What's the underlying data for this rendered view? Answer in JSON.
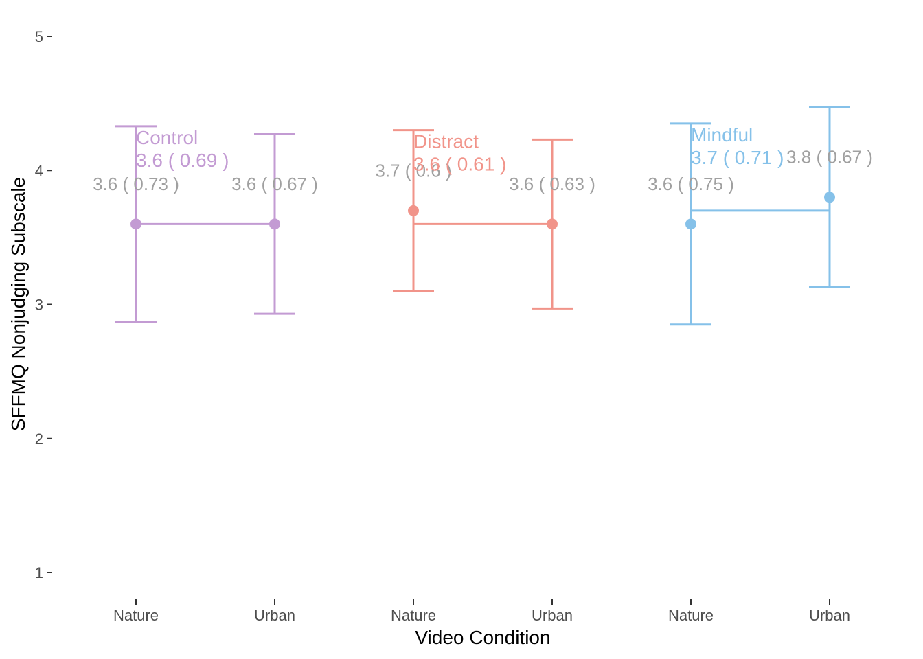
{
  "chart_data": {
    "type": "errorbar",
    "title": "",
    "xlabel": "Video Condition",
    "ylabel": "SFFMQ Nonjudging Subscale",
    "ylim": [
      1,
      5
    ],
    "yticks": [
      1,
      2,
      3,
      4,
      5
    ],
    "grid": false,
    "legend": "none",
    "groups": [
      {
        "name": "Control",
        "color": "#c39bd3",
        "overall_label": "3.6  ( 0.69 )",
        "overall_mean": 3.6,
        "points": [
          {
            "x": "Nature",
            "mean": 3.6,
            "low": 2.87,
            "high": 4.33,
            "label": "3.6  ( 0.73 )"
          },
          {
            "x": "Urban",
            "mean": 3.6,
            "low": 2.93,
            "high": 4.27,
            "label": "3.6  ( 0.67 )"
          }
        ]
      },
      {
        "name": "Distract",
        "color": "#f1948a",
        "overall_label": "3.6  ( 0.61 )",
        "overall_mean": 3.6,
        "points": [
          {
            "x": "Nature",
            "mean": 3.7,
            "low": 3.1,
            "high": 4.3,
            "label": "3.7  ( 0.6 )"
          },
          {
            "x": "Urban",
            "mean": 3.6,
            "low": 2.97,
            "high": 4.23,
            "label": "3.6  ( 0.63 )"
          }
        ]
      },
      {
        "name": "Mindful",
        "color": "#85c1e9",
        "overall_label": "3.7  ( 0.71 )",
        "overall_mean": 3.7,
        "points": [
          {
            "x": "Nature",
            "mean": 3.6,
            "low": 2.85,
            "high": 4.35,
            "label": "3.6  ( 0.75 )"
          },
          {
            "x": "Urban",
            "mean": 3.8,
            "low": 3.13,
            "high": 4.47,
            "label": "3.8  ( 0.67 )"
          }
        ]
      }
    ]
  }
}
